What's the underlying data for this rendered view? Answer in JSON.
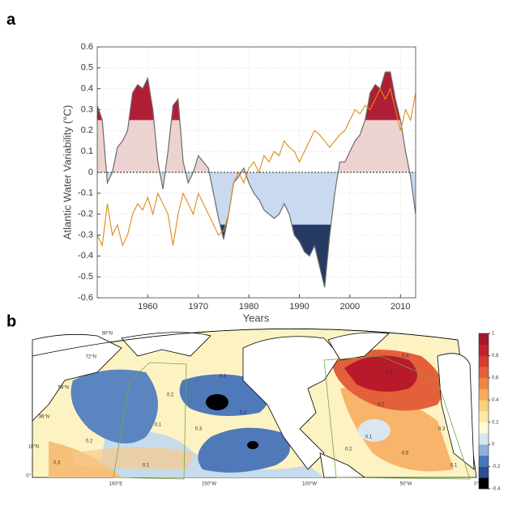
{
  "chart_data": {
    "type": "line",
    "panel_label": "a",
    "ylabel": "Atlantic Water Variability (°C)",
    "xlabel": "Years",
    "xlim": [
      1950,
      2013
    ],
    "xticks": [
      1960,
      1970,
      1980,
      1990,
      2000,
      2010
    ],
    "ylim": [
      -0.6,
      0.6
    ],
    "yticks": [
      -0.6,
      -0.5,
      -0.4,
      -0.3,
      -0.2,
      -0.1,
      0,
      0.1,
      0.2,
      0.3,
      0.4,
      0.5,
      0.6
    ],
    "grid": true,
    "shading_threshold": 0.25,
    "shading_colors": {
      "positive": "#ecd3d2",
      "strong_positive": "#b01e35",
      "negative": "#c9d9ef",
      "strong_negative": "#253b63"
    },
    "x": [
      1950,
      1951,
      1952,
      1953,
      1954,
      1955,
      1956,
      1957,
      1958,
      1959,
      1960,
      1961,
      1962,
      1963,
      1964,
      1965,
      1966,
      1967,
      1968,
      1969,
      1970,
      1971,
      1972,
      1973,
      1974,
      1975,
      1976,
      1977,
      1978,
      1979,
      1980,
      1981,
      1982,
      1983,
      1984,
      1985,
      1986,
      1987,
      1988,
      1989,
      1990,
      1991,
      1992,
      1993,
      1994,
      1995,
      1996,
      1997,
      1998,
      1999,
      2000,
      2001,
      2002,
      2003,
      2004,
      2005,
      2006,
      2007,
      2008,
      2009,
      2010,
      2011,
      2012,
      2013
    ],
    "series": [
      {
        "color": "#6b6b6b",
        "values": [
          0.32,
          0.25,
          -0.05,
          0.0,
          0.12,
          0.15,
          0.2,
          0.38,
          0.42,
          0.4,
          0.45,
          0.3,
          0.05,
          -0.08,
          0.1,
          0.32,
          0.35,
          0.05,
          -0.05,
          0.0,
          0.08,
          0.05,
          0.02,
          -0.1,
          -0.22,
          -0.32,
          -0.2,
          -0.05,
          -0.02,
          0.02,
          -0.05,
          -0.1,
          -0.13,
          -0.18,
          -0.2,
          -0.22,
          -0.2,
          -0.15,
          -0.2,
          -0.3,
          -0.33,
          -0.38,
          -0.4,
          -0.35,
          -0.45,
          -0.55,
          -0.3,
          -0.1,
          0.05,
          0.05,
          0.1,
          0.15,
          0.18,
          0.25,
          0.38,
          0.42,
          0.4,
          0.48,
          0.48,
          0.35,
          0.25,
          0.1,
          -0.02,
          -0.2
        ]
      },
      {
        "color": "#e08a1a",
        "values": [
          -0.3,
          -0.35,
          -0.15,
          -0.3,
          -0.25,
          -0.35,
          -0.3,
          -0.2,
          -0.15,
          -0.18,
          -0.12,
          -0.2,
          -0.1,
          -0.15,
          -0.2,
          -0.35,
          -0.2,
          -0.1,
          -0.15,
          -0.2,
          -0.1,
          -0.15,
          -0.2,
          -0.25,
          -0.3,
          -0.28,
          -0.2,
          -0.05,
          0.0,
          -0.05,
          0.02,
          0.05,
          0.0,
          0.08,
          0.05,
          0.1,
          0.08,
          0.15,
          0.12,
          0.1,
          0.05,
          0.1,
          0.15,
          0.2,
          0.18,
          0.15,
          0.12,
          0.15,
          0.18,
          0.2,
          0.25,
          0.3,
          0.28,
          0.32,
          0.3,
          0.35,
          0.4,
          0.35,
          0.4,
          0.3,
          0.2,
          0.3,
          0.25,
          0.38
        ]
      }
    ]
  },
  "map": {
    "panel_label": "b",
    "lat_labels": [
      "90°N",
      "72°N",
      "54°N",
      "36°N",
      "18°N",
      "0°"
    ],
    "lon_labels": [
      "160°E",
      "150°W",
      "100°W",
      "50°W",
      "0°"
    ],
    "contour_labels": [
      "0.3",
      "0.2",
      "0.1",
      "0.3",
      "0.2",
      "0.3",
      "0.1",
      "0.2",
      "0.3",
      "0.4",
      "0.2",
      "0.1",
      "0.5",
      "0.3",
      "0.2",
      "0.1"
    ],
    "colorbar": {
      "ticks": [
        1,
        0.8,
        0.6,
        0.4,
        0.2,
        0,
        -0.2,
        -0.4
      ],
      "lim": [
        -0.4,
        1
      ],
      "colors": [
        "#000000",
        "#2a4f93",
        "#4a78b8",
        "#8fb0d6",
        "#d6e6ef",
        "#fffbd6",
        "#fde9a8",
        "#fbd07d",
        "#f6aa5e",
        "#ef8544",
        "#e4603b",
        "#d63b32",
        "#c2222e",
        "#a8162a"
      ]
    }
  }
}
